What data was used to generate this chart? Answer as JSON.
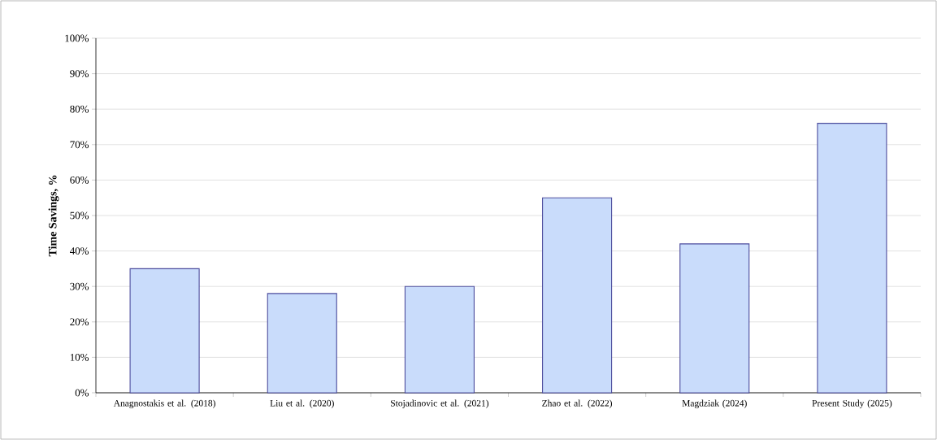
{
  "chart_data": {
    "type": "bar",
    "ylabel": "Time Savings, %",
    "categories": [
      "Anagnostakis et al. (2018)",
      "Liu et al. (2020)",
      "Stojadinovic et al. (2021)",
      "Zhao et al. (2022)",
      "Magdziak (2024)",
      "Present Study (2025)"
    ],
    "values": [
      35,
      28,
      30,
      55,
      42,
      76
    ],
    "color": "#c9dcfb",
    "ylim": [
      0,
      100
    ],
    "yticks": [
      {
        "value": 0,
        "label": "0%"
      },
      {
        "value": 10,
        "label": "10%"
      },
      {
        "value": 20,
        "label": "20%"
      },
      {
        "value": 30,
        "label": "30%"
      },
      {
        "value": 40,
        "label": "40%"
      },
      {
        "value": 50,
        "label": "50%"
      },
      {
        "value": 60,
        "label": "60%"
      },
      {
        "value": 70,
        "label": "70%"
      },
      {
        "value": 80,
        "label": "80%"
      },
      {
        "value": 90,
        "label": "90%"
      },
      {
        "value": 100,
        "label": "100%"
      }
    ],
    "grid": "y"
  }
}
